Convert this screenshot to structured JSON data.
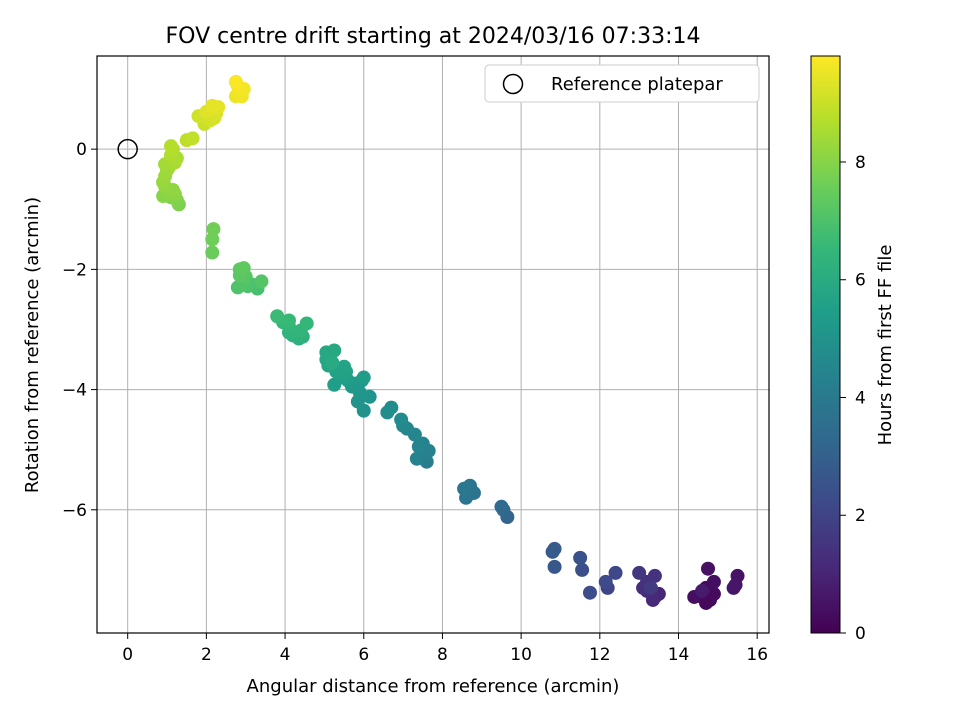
{
  "chart_data": {
    "type": "scatter",
    "title": "FOV centre drift starting at 2024/03/16 07:33:14",
    "xlabel": "Angular distance from reference (arcmin)",
    "ylabel": "Rotation from reference (arcmin)",
    "xlim": [
      -0.78,
      16.3
    ],
    "ylim": [
      -8.05,
      1.55
    ],
    "x_ticks": [
      "0",
      "2",
      "4",
      "6",
      "8",
      "10",
      "12",
      "14",
      "16"
    ],
    "y_ticks": [
      "0",
      "−2",
      "−4",
      "−6"
    ],
    "grid": true,
    "legend": {
      "placement": "top-right",
      "entries": [
        "Reference platepar"
      ]
    },
    "reference_point": {
      "x": 0,
      "y": 0,
      "label": "Reference platepar"
    },
    "colorbar": {
      "label": "Hours from first FF file",
      "range": [
        0,
        9.8
      ],
      "ticks": [
        "0",
        "2",
        "4",
        "6",
        "8"
      ],
      "colormap": "viridis"
    },
    "colormap_stops": [
      "#440154",
      "#482878",
      "#3e4989",
      "#31688e",
      "#26828e",
      "#1f9e89",
      "#35b779",
      "#6ece58",
      "#b5de2b",
      "#fde725"
    ],
    "points": [
      {
        "x": 14.6,
        "y": -7.45,
        "h": 0.1
      },
      {
        "x": 14.8,
        "y": -7.5,
        "h": 0.15
      },
      {
        "x": 14.7,
        "y": -7.55,
        "h": 0.2
      },
      {
        "x": 14.9,
        "y": -7.4,
        "h": 0.25
      },
      {
        "x": 14.7,
        "y": -7.3,
        "h": 0.3
      },
      {
        "x": 14.4,
        "y": -7.45,
        "h": 0.35
      },
      {
        "x": 14.9,
        "y": -7.2,
        "h": 0.4
      },
      {
        "x": 14.75,
        "y": -6.98,
        "h": 0.45
      },
      {
        "x": 15.5,
        "y": -7.1,
        "h": 0.5
      },
      {
        "x": 15.45,
        "y": -7.25,
        "h": 0.55
      },
      {
        "x": 15.4,
        "y": -7.3,
        "h": 0.6
      },
      {
        "x": 14.6,
        "y": -7.35,
        "h": 0.7
      },
      {
        "x": 13.4,
        "y": -7.45,
        "h": 0.9
      },
      {
        "x": 13.5,
        "y": -7.4,
        "h": 1.0
      },
      {
        "x": 13.35,
        "y": -7.5,
        "h": 1.1
      },
      {
        "x": 13.2,
        "y": -7.35,
        "h": 1.2
      },
      {
        "x": 13.1,
        "y": -7.3,
        "h": 1.3
      },
      {
        "x": 13.4,
        "y": -7.1,
        "h": 1.4
      },
      {
        "x": 13.2,
        "y": -7.2,
        "h": 1.5
      },
      {
        "x": 13.0,
        "y": -7.05,
        "h": 1.6
      },
      {
        "x": 13.3,
        "y": -7.3,
        "h": 1.7
      },
      {
        "x": 12.2,
        "y": -7.3,
        "h": 2.0
      },
      {
        "x": 12.4,
        "y": -7.05,
        "h": 2.1
      },
      {
        "x": 12.15,
        "y": -7.2,
        "h": 2.2
      },
      {
        "x": 11.75,
        "y": -7.38,
        "h": 2.3
      },
      {
        "x": 11.55,
        "y": -7.0,
        "h": 2.4
      },
      {
        "x": 11.5,
        "y": -6.8,
        "h": 2.5
      },
      {
        "x": 10.85,
        "y": -6.95,
        "h": 2.7
      },
      {
        "x": 10.8,
        "y": -6.7,
        "h": 2.8
      },
      {
        "x": 10.85,
        "y": -6.65,
        "h": 2.85
      },
      {
        "x": 9.65,
        "y": -6.12,
        "h": 3.2
      },
      {
        "x": 9.55,
        "y": -6.0,
        "h": 3.3
      },
      {
        "x": 9.5,
        "y": -5.95,
        "h": 3.35
      },
      {
        "x": 8.8,
        "y": -5.72,
        "h": 3.7
      },
      {
        "x": 8.65,
        "y": -5.75,
        "h": 3.75
      },
      {
        "x": 8.6,
        "y": -5.8,
        "h": 3.8
      },
      {
        "x": 8.7,
        "y": -5.6,
        "h": 3.85
      },
      {
        "x": 8.55,
        "y": -5.65,
        "h": 3.9
      },
      {
        "x": 7.6,
        "y": -5.2,
        "h": 4.2
      },
      {
        "x": 7.55,
        "y": -5.1,
        "h": 4.25
      },
      {
        "x": 7.65,
        "y": -5.02,
        "h": 4.3
      },
      {
        "x": 7.35,
        "y": -5.15,
        "h": 4.35
      },
      {
        "x": 7.5,
        "y": -4.9,
        "h": 4.4
      },
      {
        "x": 7.4,
        "y": -4.95,
        "h": 4.45
      },
      {
        "x": 7.3,
        "y": -4.75,
        "h": 4.5
      },
      {
        "x": 7.1,
        "y": -4.65,
        "h": 4.55
      },
      {
        "x": 7.0,
        "y": -4.6,
        "h": 4.6
      },
      {
        "x": 6.95,
        "y": -4.5,
        "h": 4.7
      },
      {
        "x": 6.7,
        "y": -4.3,
        "h": 4.75
      },
      {
        "x": 6.6,
        "y": -4.38,
        "h": 4.8
      },
      {
        "x": 6.0,
        "y": -4.35,
        "h": 5.0
      },
      {
        "x": 5.85,
        "y": -4.2,
        "h": 5.05
      },
      {
        "x": 6.15,
        "y": -4.12,
        "h": 5.1
      },
      {
        "x": 5.9,
        "y": -4.05,
        "h": 5.15
      },
      {
        "x": 5.7,
        "y": -3.95,
        "h": 5.2
      },
      {
        "x": 5.8,
        "y": -3.9,
        "h": 5.25
      },
      {
        "x": 5.95,
        "y": -3.85,
        "h": 5.3
      },
      {
        "x": 6.0,
        "y": -3.8,
        "h": 5.35
      },
      {
        "x": 5.6,
        "y": -3.85,
        "h": 5.4
      },
      {
        "x": 5.25,
        "y": -3.92,
        "h": 5.5
      },
      {
        "x": 5.45,
        "y": -3.8,
        "h": 5.55
      },
      {
        "x": 5.55,
        "y": -3.7,
        "h": 5.6
      },
      {
        "x": 5.3,
        "y": -3.7,
        "h": 5.65
      },
      {
        "x": 5.5,
        "y": -3.62,
        "h": 5.7
      },
      {
        "x": 5.1,
        "y": -3.6,
        "h": 5.75
      },
      {
        "x": 5.05,
        "y": -3.5,
        "h": 5.8
      },
      {
        "x": 5.05,
        "y": -3.38,
        "h": 5.85
      },
      {
        "x": 5.25,
        "y": -3.35,
        "h": 5.9
      },
      {
        "x": 5.2,
        "y": -3.55,
        "h": 5.95
      },
      {
        "x": 4.35,
        "y": -3.15,
        "h": 6.2
      },
      {
        "x": 4.45,
        "y": -3.12,
        "h": 6.25
      },
      {
        "x": 4.2,
        "y": -3.1,
        "h": 6.3
      },
      {
        "x": 4.1,
        "y": -3.05,
        "h": 6.35
      },
      {
        "x": 4.4,
        "y": -3.02,
        "h": 6.4
      },
      {
        "x": 4.1,
        "y": -2.95,
        "h": 6.45
      },
      {
        "x": 4.55,
        "y": -2.9,
        "h": 6.5
      },
      {
        "x": 3.95,
        "y": -2.88,
        "h": 6.55
      },
      {
        "x": 4.1,
        "y": -2.85,
        "h": 6.6
      },
      {
        "x": 3.8,
        "y": -2.78,
        "h": 6.65
      },
      {
        "x": 3.3,
        "y": -2.32,
        "h": 6.9
      },
      {
        "x": 3.15,
        "y": -2.25,
        "h": 6.95
      },
      {
        "x": 3.05,
        "y": -2.28,
        "h": 7.0
      },
      {
        "x": 2.8,
        "y": -2.3,
        "h": 7.05
      },
      {
        "x": 2.95,
        "y": -2.2,
        "h": 7.1
      },
      {
        "x": 3.4,
        "y": -2.2,
        "h": 7.15
      },
      {
        "x": 3.0,
        "y": -2.12,
        "h": 7.2
      },
      {
        "x": 2.85,
        "y": -2.1,
        "h": 7.25
      },
      {
        "x": 2.85,
        "y": -2.0,
        "h": 7.3
      },
      {
        "x": 2.95,
        "y": -1.98,
        "h": 7.35
      },
      {
        "x": 2.15,
        "y": -1.72,
        "h": 7.55
      },
      {
        "x": 2.15,
        "y": -1.5,
        "h": 7.6
      },
      {
        "x": 2.18,
        "y": -1.33,
        "h": 7.65
      },
      {
        "x": 1.3,
        "y": -0.92,
        "h": 7.85
      },
      {
        "x": 1.25,
        "y": -0.85,
        "h": 7.9
      },
      {
        "x": 1.1,
        "y": -0.8,
        "h": 7.95
      },
      {
        "x": 0.9,
        "y": -0.78,
        "h": 8.0
      },
      {
        "x": 1.2,
        "y": -0.75,
        "h": 8.05
      },
      {
        "x": 1.0,
        "y": -0.7,
        "h": 8.1
      },
      {
        "x": 1.15,
        "y": -0.68,
        "h": 8.15
      },
      {
        "x": 0.95,
        "y": -0.62,
        "h": 8.2
      },
      {
        "x": 0.9,
        "y": -0.55,
        "h": 8.25
      },
      {
        "x": 0.95,
        "y": -0.45,
        "h": 8.3
      },
      {
        "x": 1.0,
        "y": -0.35,
        "h": 8.35
      },
      {
        "x": 1.05,
        "y": -0.3,
        "h": 8.4
      },
      {
        "x": 0.95,
        "y": -0.25,
        "h": 8.45
      },
      {
        "x": 1.2,
        "y": -0.22,
        "h": 8.5
      },
      {
        "x": 1.25,
        "y": -0.15,
        "h": 8.55
      },
      {
        "x": 1.1,
        "y": -0.1,
        "h": 8.6
      },
      {
        "x": 1.15,
        "y": 0.0,
        "h": 8.65
      },
      {
        "x": 1.1,
        "y": 0.05,
        "h": 8.7
      },
      {
        "x": 1.5,
        "y": 0.15,
        "h": 8.85
      },
      {
        "x": 1.65,
        "y": 0.18,
        "h": 8.9
      },
      {
        "x": 1.95,
        "y": 0.42,
        "h": 9.0
      },
      {
        "x": 2.0,
        "y": 0.5,
        "h": 9.05
      },
      {
        "x": 1.8,
        "y": 0.55,
        "h": 9.1
      },
      {
        "x": 2.1,
        "y": 0.48,
        "h": 9.15
      },
      {
        "x": 2.2,
        "y": 0.52,
        "h": 9.2
      },
      {
        "x": 2.25,
        "y": 0.6,
        "h": 9.25
      },
      {
        "x": 2.0,
        "y": 0.62,
        "h": 9.3
      },
      {
        "x": 2.1,
        "y": 0.65,
        "h": 9.35
      },
      {
        "x": 2.3,
        "y": 0.7,
        "h": 9.4
      },
      {
        "x": 2.15,
        "y": 0.72,
        "h": 9.45
      },
      {
        "x": 2.75,
        "y": 0.88,
        "h": 9.55
      },
      {
        "x": 2.9,
        "y": 0.88,
        "h": 9.6
      },
      {
        "x": 2.85,
        "y": 0.95,
        "h": 9.62
      },
      {
        "x": 2.95,
        "y": 1.0,
        "h": 9.65
      },
      {
        "x": 2.8,
        "y": 1.05,
        "h": 9.7
      },
      {
        "x": 2.75,
        "y": 1.12,
        "h": 9.75
      }
    ]
  }
}
